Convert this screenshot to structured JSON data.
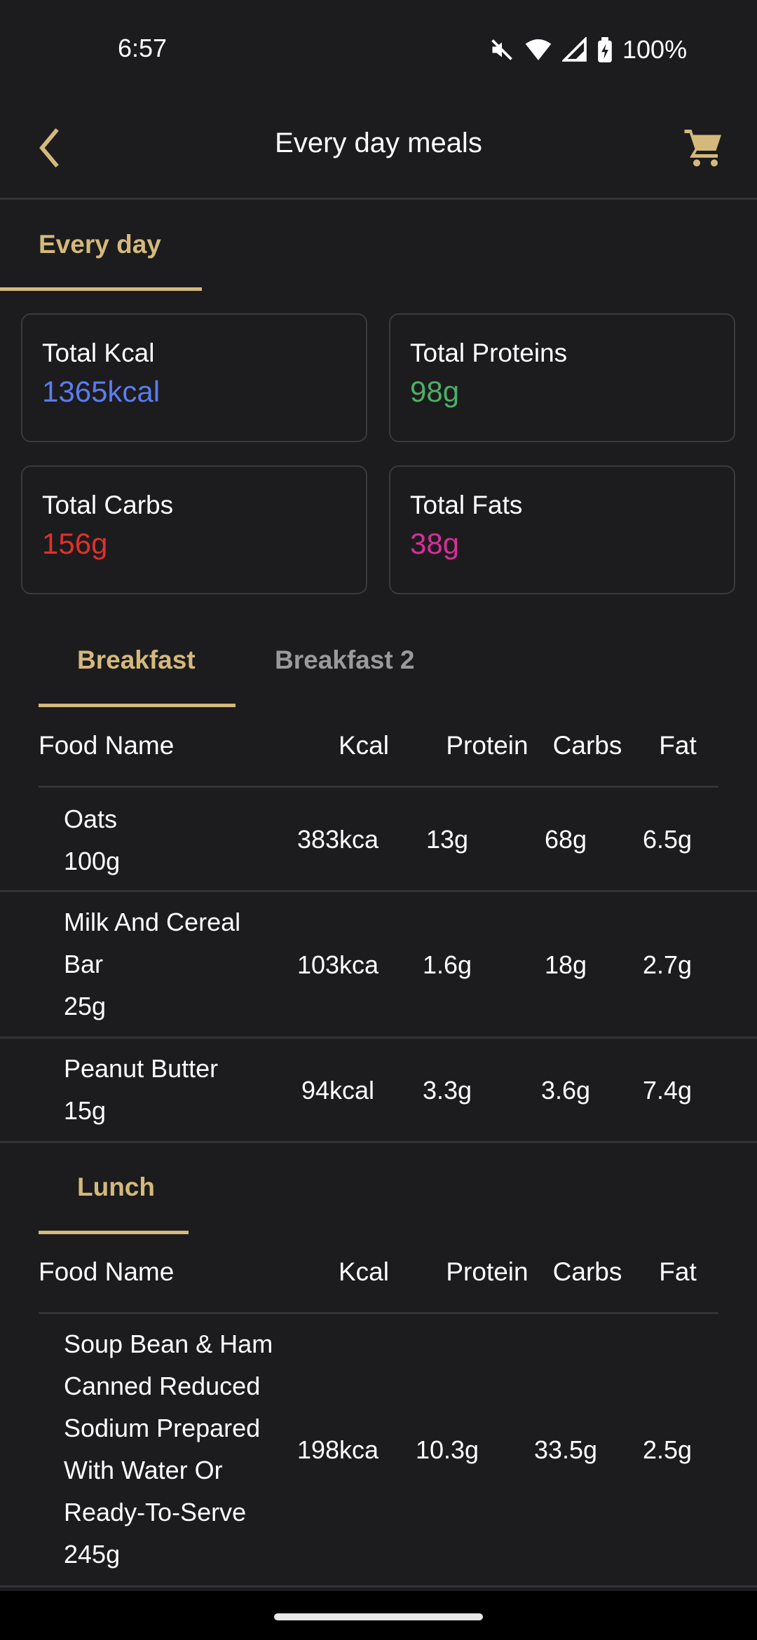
{
  "status": {
    "time": "6:57",
    "battery": "100%"
  },
  "header": {
    "title": "Every day meals"
  },
  "tabs": {
    "active": "Every day"
  },
  "totals": [
    {
      "label": "Total Kcal",
      "value": "1365kcal",
      "color": "#5b7cf0"
    },
    {
      "label": "Total Proteins",
      "value": "98g",
      "color": "#4caf64"
    },
    {
      "label": "Total Carbs",
      "value": "156g",
      "color": "#e0302a"
    },
    {
      "label": "Total Fats",
      "value": "38g",
      "color": "#d62f9a"
    }
  ],
  "columns": {
    "name": "Food Name",
    "kcal": "Kcal",
    "protein": "Protein",
    "carbs": "Carbs",
    "fat": "Fat"
  },
  "breakfast": {
    "tabs": [
      "Breakfast",
      "Breakfast 2"
    ],
    "rows": [
      {
        "name": "Oats",
        "amount": "100g",
        "kcal": "383kca",
        "protein": "13g",
        "carbs": "68g",
        "fat": "6.5g"
      },
      {
        "name": "Milk And Cereal Bar",
        "amount": "25g",
        "kcal": "103kca",
        "protein": "1.6g",
        "carbs": "18g",
        "fat": "2.7g"
      },
      {
        "name": "Peanut Butter",
        "amount": "15g",
        "kcal": "94kcal",
        "protein": "3.3g",
        "carbs": "3.6g",
        "fat": "7.4g"
      }
    ]
  },
  "lunch": {
    "tabs": [
      "Lunch"
    ],
    "rows": [
      {
        "name": "Soup Bean & Ham Canned Reduced Sodium Prepared With Water Or Ready-To-Serve",
        "amount": "245g",
        "kcal": "198kca",
        "protein": "10.3g",
        "carbs": "33.5g",
        "fat": "2.5g"
      }
    ]
  },
  "colors": {
    "accent": "#d4b97c",
    "background": "#1c1c1e"
  }
}
